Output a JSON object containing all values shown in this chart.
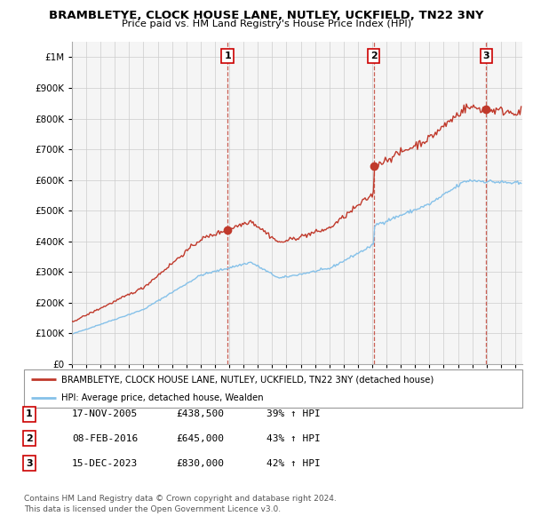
{
  "title": "BRAMBLETYE, CLOCK HOUSE LANE, NUTLEY, UCKFIELD, TN22 3NY",
  "subtitle": "Price paid vs. HM Land Registry's House Price Index (HPI)",
  "legend_entry1": "BRAMBLETYE, CLOCK HOUSE LANE, NUTLEY, UCKFIELD, TN22 3NY (detached house)",
  "legend_entry2": "HPI: Average price, detached house, Wealden",
  "footer1": "Contains HM Land Registry data © Crown copyright and database right 2024.",
  "footer2": "This data is licensed under the Open Government Licence v3.0.",
  "transactions": [
    {
      "num": 1,
      "date": "17-NOV-2005",
      "price": 438500,
      "pct": "39%",
      "dir": "↑"
    },
    {
      "num": 2,
      "date": "08-FEB-2016",
      "price": 645000,
      "pct": "43%",
      "dir": "↑"
    },
    {
      "num": 3,
      "date": "15-DEC-2023",
      "price": 830000,
      "pct": "42%",
      "dir": "↑"
    }
  ],
  "sale_years": [
    2005.88,
    2016.1,
    2023.96
  ],
  "sale_prices": [
    438500,
    645000,
    830000
  ],
  "hpi_color": "#85c1e9",
  "price_color": "#c0392b",
  "dashed_color": "#c0392b",
  "background_color": "#ffffff",
  "grid_color": "#cccccc",
  "ylim": [
    0,
    1050000
  ],
  "xlim_start": 1995.0,
  "xlim_end": 2026.5
}
